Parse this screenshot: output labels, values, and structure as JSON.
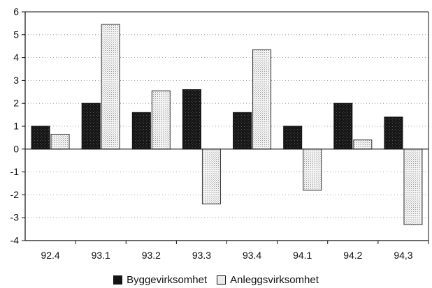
{
  "chart_data": {
    "type": "bar",
    "categories": [
      "92.4",
      "93.1",
      "93.2",
      "93.3",
      "93.4",
      "94.1",
      "94.2",
      "94,3"
    ],
    "series": [
      {
        "name": "Byggevirksomhet",
        "values": [
          1.0,
          2.0,
          1.6,
          2.6,
          1.6,
          1.0,
          2.0,
          1.4
        ],
        "color": "#141414",
        "pattern": "dark-stipple"
      },
      {
        "name": "Anleggsvirksomhet",
        "values": [
          0.65,
          5.45,
          2.55,
          -2.4,
          4.35,
          -1.8,
          0.4,
          -3.3
        ],
        "color": "#ececec",
        "pattern": "light-stipple"
      }
    ],
    "yticks": [
      "6",
      "5",
      "4",
      "3",
      "2",
      "1",
      "0",
      "-1",
      "-2",
      "-3",
      "-4"
    ],
    "ylim": [
      -4,
      6
    ],
    "grid": "horizontal-dotted",
    "legend_position": "bottom-center",
    "title": "",
    "xlabel": "",
    "ylabel": ""
  }
}
